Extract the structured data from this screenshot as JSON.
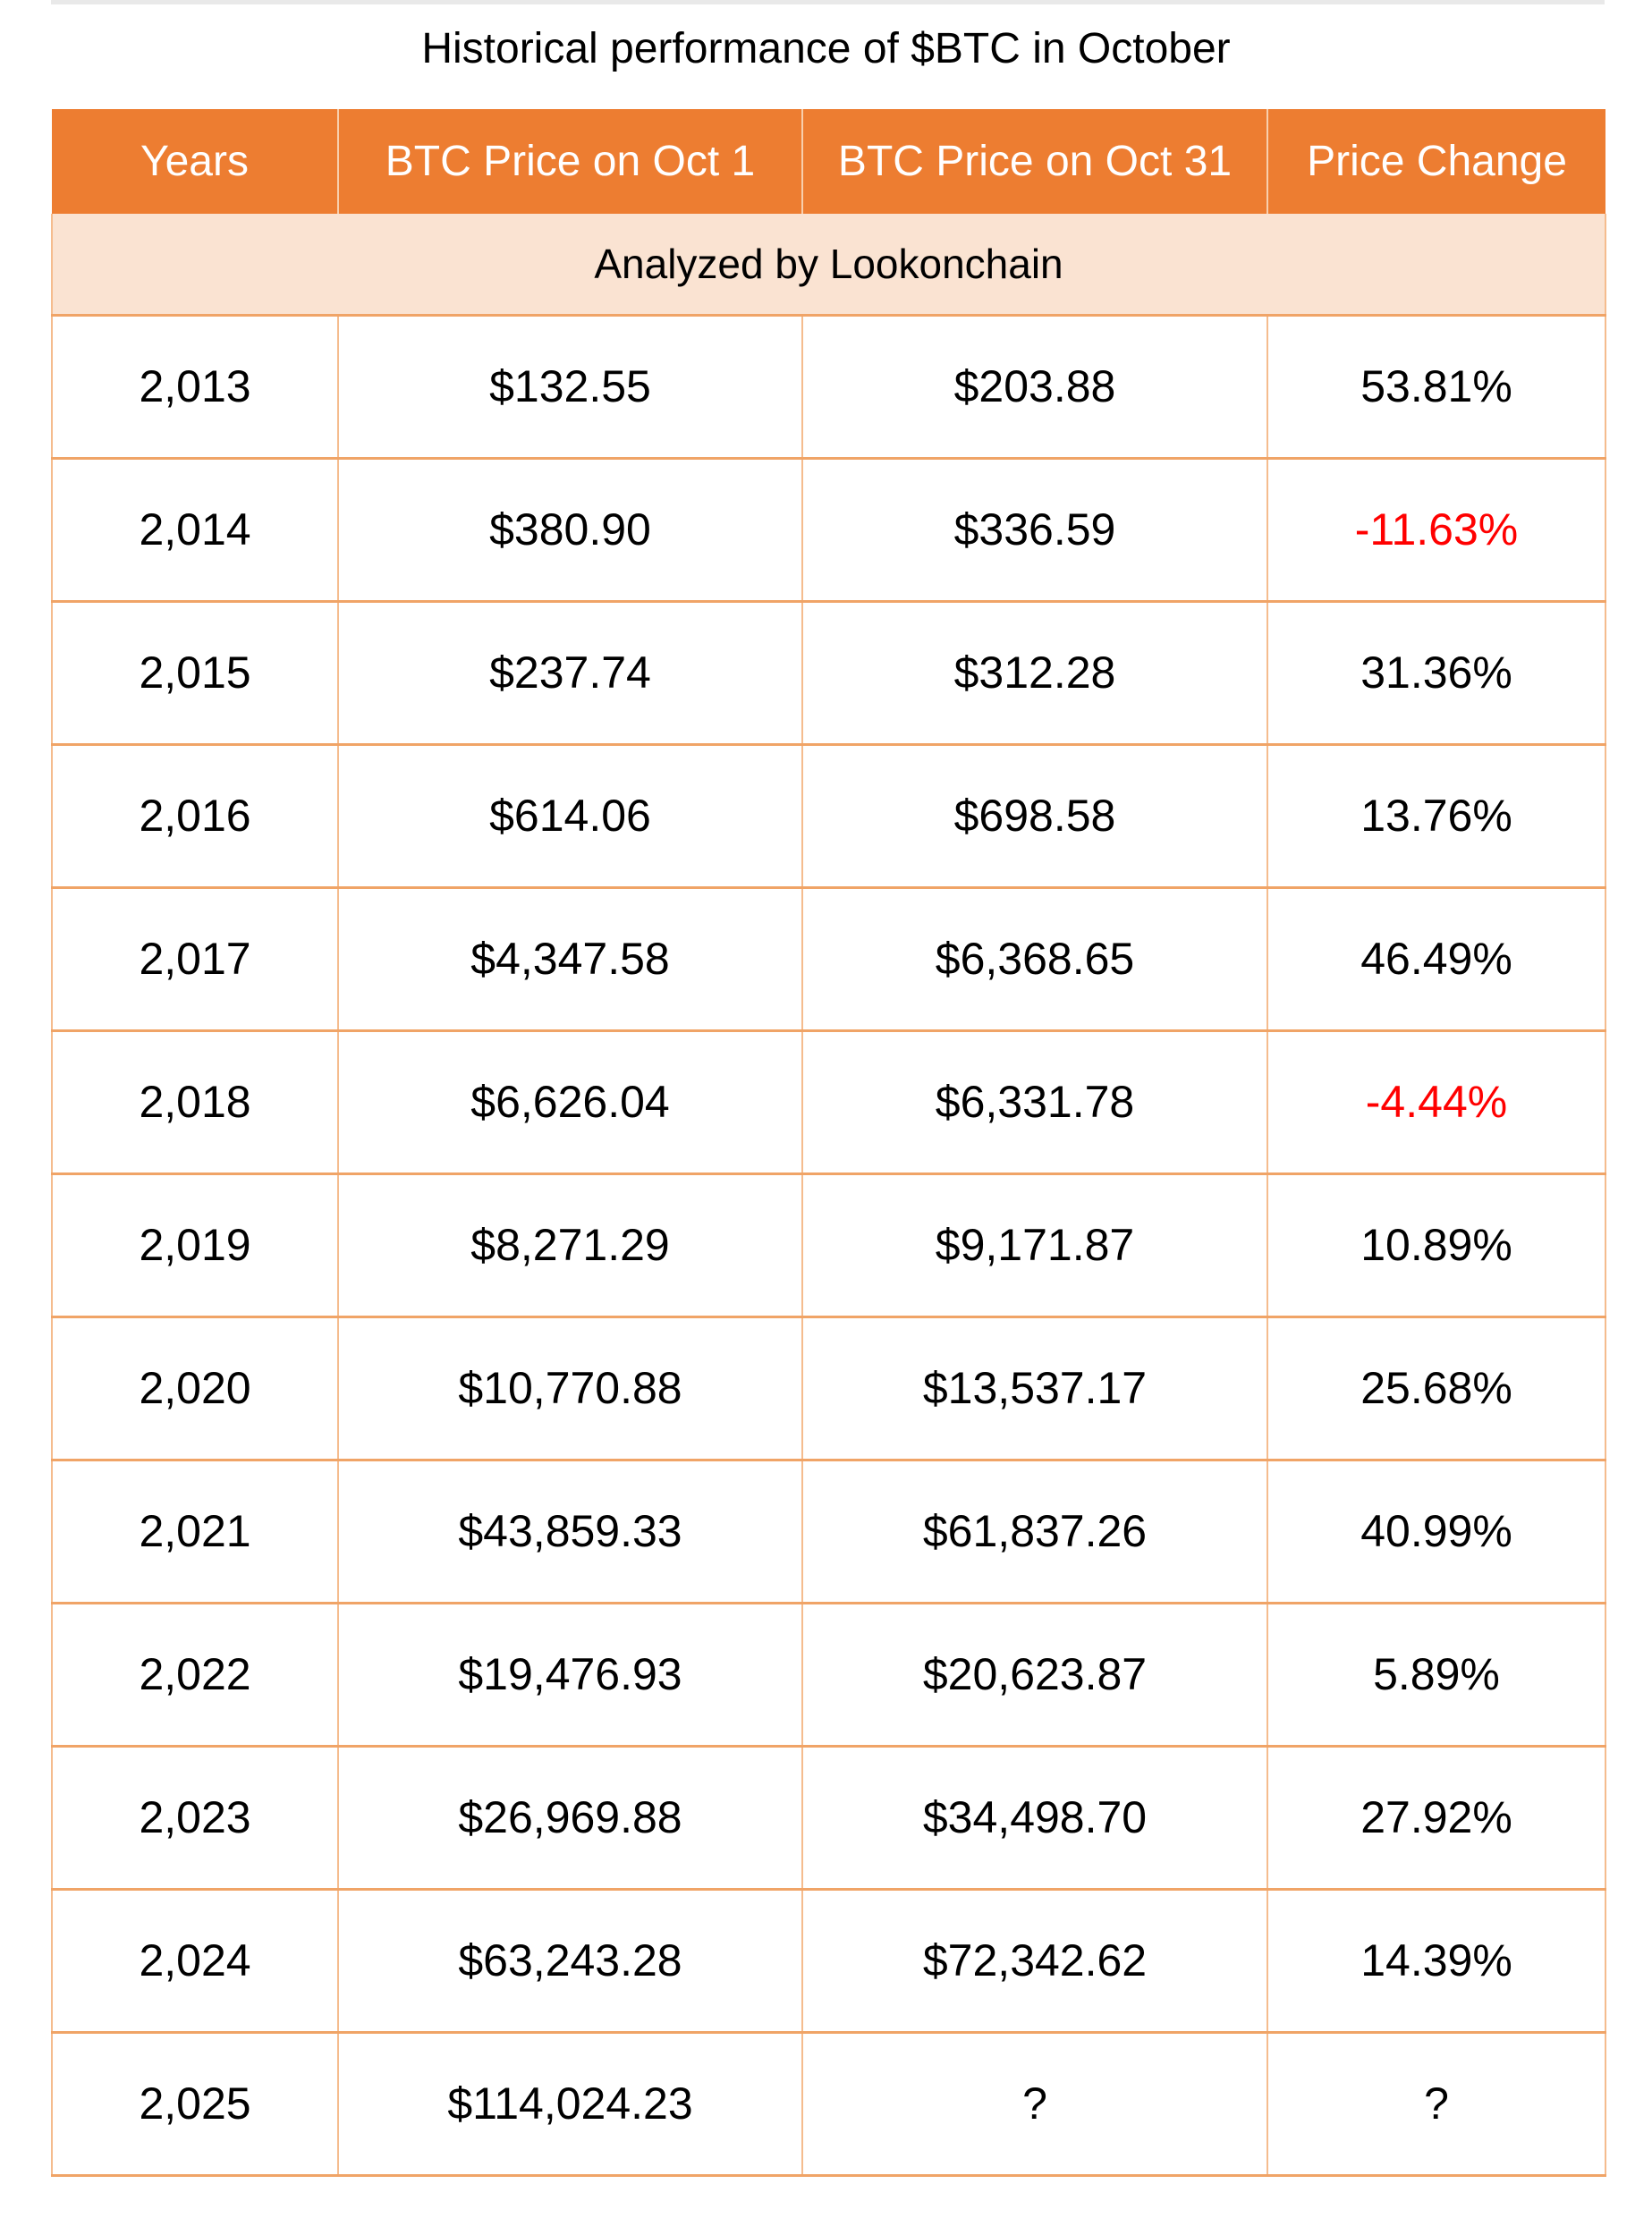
{
  "title": "Historical performance of $BTC in October",
  "chart_data": {
    "type": "table",
    "title": "Historical performance of $BTC in October",
    "columns": [
      "Years",
      "BTC Price on Oct 1",
      "BTC Price on Oct 31",
      "Price Change"
    ],
    "banner": "Analyzed by Lookonchain",
    "rows": [
      [
        "2,013",
        "$132.55",
        "$203.88",
        "53.81%"
      ],
      [
        "2,014",
        "$380.90",
        "$336.59",
        "-11.63%"
      ],
      [
        "2,015",
        "$237.74",
        "$312.28",
        "31.36%"
      ],
      [
        "2,016",
        "$614.06",
        "$698.58",
        "13.76%"
      ],
      [
        "2,017",
        "$4,347.58",
        "$6,368.65",
        "46.49%"
      ],
      [
        "2,018",
        "$6,626.04",
        "$6,331.78",
        "-4.44%"
      ],
      [
        "2,019",
        "$8,271.29",
        "$9,171.87",
        "10.89%"
      ],
      [
        "2,020",
        "$10,770.88",
        "$13,537.17",
        "25.68%"
      ],
      [
        "2,021",
        "$43,859.33",
        "$61,837.26",
        "40.99%"
      ],
      [
        "2,022",
        "$19,476.93",
        "$20,623.87",
        "5.89%"
      ],
      [
        "2,023",
        "$26,969.88",
        "$34,498.70",
        "27.92%"
      ],
      [
        "2,024",
        "$63,243.28",
        "$72,342.62",
        "14.39%"
      ],
      [
        "2,025",
        "$114,024.23",
        "?",
        "?"
      ]
    ]
  },
  "colors": {
    "header_bg": "#ED7D31",
    "header_text": "#FFFFFF",
    "header_divider": "#F8CFAD",
    "banner_bg": "#FAE3D2",
    "grid_vertical": "#F5BC8E",
    "grid_horizontal": "#F0A467",
    "negative_change": "#FF0000",
    "text": "#000000",
    "top_strip": "#E9E9E9"
  }
}
